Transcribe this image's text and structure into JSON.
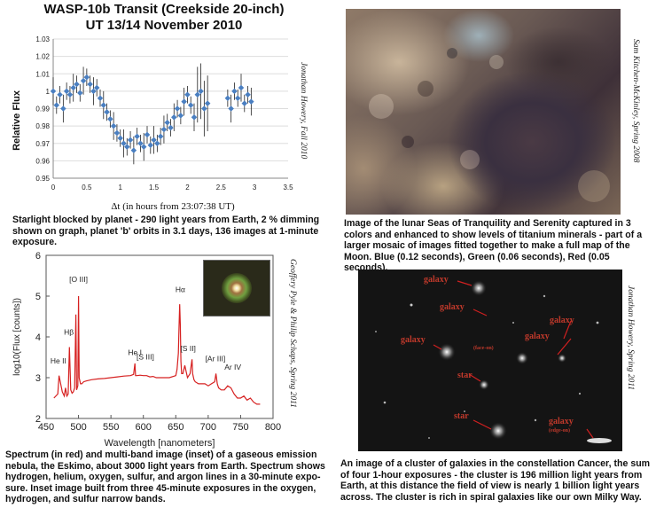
{
  "transit": {
    "title_line1": "WASP-10b Transit (Creekside 20-inch)",
    "title_line2": "UT 13/14 November 2010",
    "credit": "Jonathan Howery, Fall 2010",
    "caption": "Starlight blocked by planet - 290 light years from Earth, 2 % dimming shown on graph, planet 'b' orbits in 3.1 days,  136 images at 1-minute exposure."
  },
  "moon": {
    "credit": "Sam Kitchen-McKinley, Spring 2008",
    "caption": "Image of the lunar Seas of Tranquility and Serenity captured  in 3 colors and enhanced  to show levels of titanium minerals - part of a larger  mosaic of images fitted together to make a full map of the Moon.  Blue (0.12 seconds), Green (0.06 seconds), Red (0.05 seconds)."
  },
  "spectrum": {
    "credit": "Geoffery Pyle & Philip Schaps, Spring 2011",
    "caption": "Spectrum (in red) and multi-band image (inset) of a gaseous emission nebula, the Eskimo, about 3000 light years from Earth.  Spectrum shows hydrogen, helium,  oxygen, sulfur, and argon lines in a 30-minute expo-sure.  Inset image built from three 45-minute exposures in the oxygen, hydrogen, and sulfur narrow bands.",
    "line_labels": [
      "He II",
      "Hβ",
      "[O III]",
      "He I",
      "[S III]",
      "Hα",
      "[S II]",
      "[Ar III]",
      "Ar IV"
    ]
  },
  "galaxies": {
    "credit": "Jonathan Howery, Spring 2011",
    "caption": "An image of a cluster of galaxies in the constellation Cancer, the sum of four 1-hour exposures - the cluster is 196 million light years from Earth, at this distance the field of view is nearly 1 billion light years across.  The cluster is rich in spiral galaxies like our own Milky Way.",
    "labels": [
      "galaxy",
      "galaxy",
      "galaxy",
      "galaxy",
      "galaxy",
      "star",
      "star",
      "galaxy"
    ],
    "sub_labels": [
      "(face-on)",
      "(edge-on)"
    ]
  },
  "chart_data": [
    {
      "type": "scatter",
      "title": "WASP-10b Transit (Creekside 20-inch) UT 13/14 November 2010",
      "xlabel": "Δt (in hours from 23:07:38 UT)",
      "ylabel": "Relative Flux",
      "xlim": [
        0,
        3.5
      ],
      "ylim": [
        0.95,
        1.03
      ],
      "x_ticks": [
        "0",
        "0.5",
        "1",
        "1.5",
        "2",
        "2.5",
        "3",
        "3.5"
      ],
      "y_ticks": [
        "0.95",
        "0.96",
        "0.97",
        "0.98",
        "0.99",
        "1",
        "1.01",
        "1.02",
        "1.03"
      ],
      "x": [
        0.0,
        0.05,
        0.1,
        0.15,
        0.2,
        0.25,
        0.3,
        0.35,
        0.4,
        0.45,
        0.5,
        0.55,
        0.6,
        0.65,
        0.7,
        0.75,
        0.8,
        0.85,
        0.9,
        0.95,
        1.0,
        1.05,
        1.1,
        1.15,
        1.2,
        1.25,
        1.3,
        1.35,
        1.4,
        1.45,
        1.5,
        1.55,
        1.6,
        1.65,
        1.7,
        1.75,
        1.8,
        1.85,
        1.9,
        1.95,
        2.0,
        2.05,
        2.1,
        2.15,
        2.2,
        2.25,
        2.3,
        2.6,
        2.65,
        2.7,
        2.75,
        2.8,
        2.85,
        2.9,
        2.95
      ],
      "y": [
        1.0,
        0.992,
        0.998,
        0.99,
        1.0,
        0.998,
        1.002,
        1.004,
        0.999,
        1.006,
        1.008,
        1.004,
        1.0,
        1.002,
        0.996,
        0.992,
        0.988,
        0.984,
        0.98,
        0.976,
        0.973,
        0.97,
        0.968,
        0.972,
        0.966,
        0.974,
        0.97,
        0.968,
        0.975,
        0.969,
        0.972,
        0.97,
        0.974,
        0.978,
        0.982,
        0.979,
        0.985,
        0.99,
        0.986,
        0.994,
        0.998,
        0.992,
        0.985,
        0.998,
        1.0,
        0.99,
        0.993,
        0.996,
        0.99,
        1.0,
        0.996,
        1.002,
        0.993,
        0.998,
        0.994
      ]
    },
    {
      "type": "line",
      "xlabel": "Wavelength  [nanometers]",
      "ylabel": "log10(Flux [counts])",
      "xlim": [
        450,
        800
      ],
      "ylim": [
        2,
        6
      ],
      "x_ticks": [
        "450",
        "500",
        "550",
        "600",
        "650",
        "700",
        "750",
        "800"
      ],
      "y_ticks": [
        "2",
        "3",
        "4",
        "5",
        "6"
      ],
      "series": [
        {
          "name": "Eskimo nebula spectrum",
          "x": [
            462,
            468,
            470,
            475,
            478,
            480,
            482,
            484,
            486,
            488,
            490,
            492,
            494,
            496,
            497,
            499,
            500,
            501,
            503,
            505,
            508,
            512,
            520,
            530,
            540,
            550,
            560,
            570,
            580,
            585,
            587,
            588,
            590,
            595,
            600,
            605,
            610,
            615,
            620,
            630,
            640,
            650,
            652,
            654,
            655,
            656,
            657,
            658,
            659,
            661,
            664,
            668,
            672,
            675,
            676,
            678,
            680,
            685,
            690,
            695,
            700,
            705,
            710,
            712,
            714,
            716,
            720,
            725,
            730,
            735,
            740,
            745,
            750,
            755,
            760,
            765,
            770,
            775,
            780
          ],
          "y": [
            2.5,
            2.6,
            3.05,
            2.65,
            2.55,
            2.75,
            2.55,
            2.6,
            3.75,
            2.7,
            2.62,
            2.65,
            2.75,
            4.55,
            2.7,
            2.8,
            5.0,
            3.0,
            2.85,
            2.85,
            2.9,
            2.92,
            2.95,
            2.97,
            2.98,
            3.0,
            3.02,
            3.04,
            3.05,
            3.08,
            3.35,
            3.05,
            3.05,
            3.06,
            3.05,
            3.05,
            3.02,
            3.03,
            3.0,
            3.0,
            3.0,
            3.05,
            3.2,
            3.6,
            4.2,
            4.8,
            4.3,
            3.4,
            3.1,
            3.1,
            3.3,
            3.0,
            3.1,
            3.45,
            3.1,
            2.95,
            2.9,
            2.85,
            2.85,
            2.85,
            2.8,
            2.85,
            2.9,
            3.1,
            2.85,
            2.75,
            2.7,
            2.7,
            2.8,
            2.75,
            2.6,
            2.5,
            2.5,
            2.55,
            2.45,
            2.5,
            2.4,
            2.35,
            2.35
          ]
        }
      ]
    }
  ]
}
